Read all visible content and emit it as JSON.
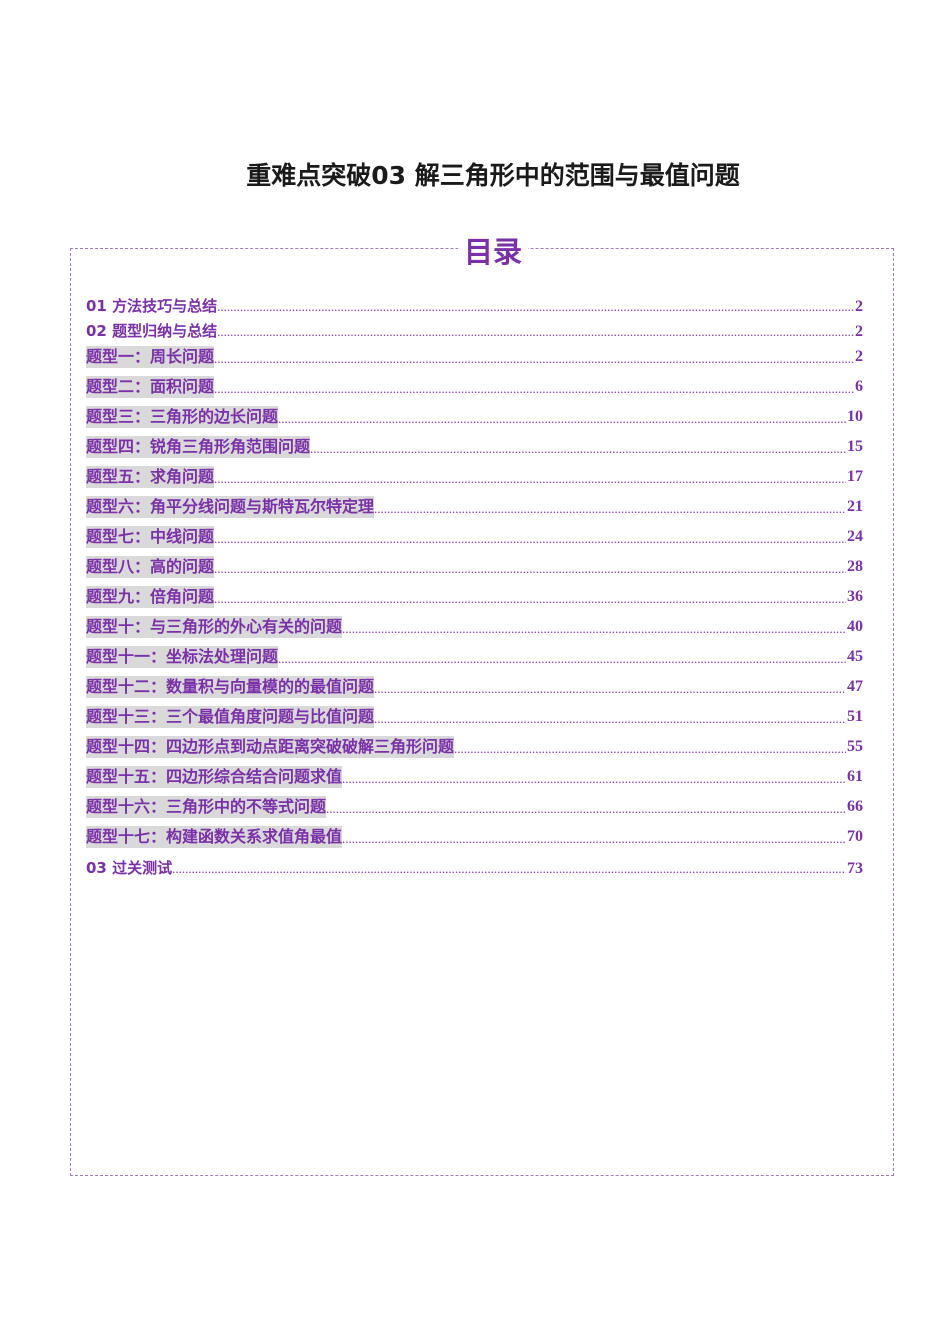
{
  "document": {
    "title": "重难点突破03  解三角形中的范围与最值问题",
    "toc_heading": "目录"
  },
  "toc": [
    {
      "label": "01 方法技巧与总结",
      "page": "2"
    },
    {
      "label": "02 题型归纳与总结",
      "page": "2"
    },
    {
      "label": "题型一：周长问题",
      "page": "2"
    },
    {
      "label": "题型二：面积问题",
      "page": "6"
    },
    {
      "label": "题型三：三角形的边长问题",
      "page": "10"
    },
    {
      "label": "题型四：锐角三角形角范围问题",
      "page": "15"
    },
    {
      "label": "题型五：求角问题",
      "page": "17"
    },
    {
      "label": "题型六：角平分线问题与斯特瓦尔特定理",
      "page": "21"
    },
    {
      "label": "题型七：中线问题",
      "page": "24"
    },
    {
      "label": "题型八：高的问题",
      "page": "28"
    },
    {
      "label": "题型九：倍角问题",
      "page": "36"
    },
    {
      "label": "题型十：与三角形的外心有关的问题",
      "page": "40"
    },
    {
      "label": "题型十一：坐标法处理问题",
      "page": "45"
    },
    {
      "label": "题型十二：数量积与向量模的的最值问题",
      "page": "47"
    },
    {
      "label": "题型十三：三个最值角度问题与比值问题",
      "page": "51"
    },
    {
      "label": "题型十四：四边形点到动点距离突破破解三角形问题",
      "page": "55"
    },
    {
      "label": "题型十五：四边形综合结合问题求值",
      "page": "61"
    },
    {
      "label": "题型十六：三角形中的不等式问题",
      "page": "66"
    },
    {
      "label": "题型十七：构建函数关系求值角最值",
      "page": "70"
    },
    {
      "label": "03 过关测试",
      "page": "73"
    }
  ],
  "colors": {
    "accent": "#7a30a8",
    "shade": "#d9d9d9",
    "border": "#9a7fb0"
  }
}
